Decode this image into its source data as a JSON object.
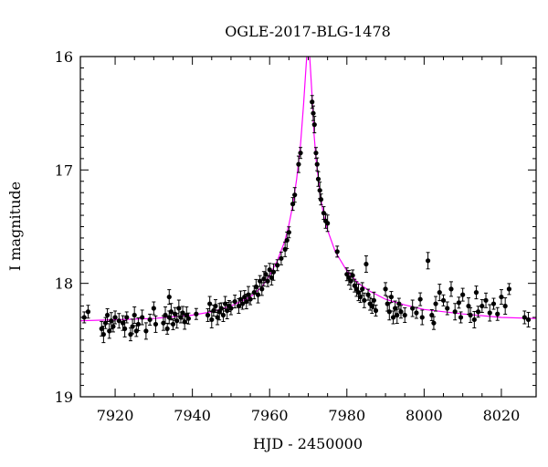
{
  "chart_data": {
    "type": "scatter",
    "title": "OGLE-2017-BLG-1478",
    "xlabel": "HJD - 2450000",
    "ylabel": "I magnitude",
    "xlim": [
      7911,
      8029
    ],
    "ylim": [
      19,
      16
    ],
    "y_axis_inverted": true,
    "x_ticks": [
      7920,
      7940,
      7960,
      7980,
      8000,
      8020
    ],
    "y_ticks": [
      16,
      17,
      18,
      19
    ],
    "grid": false,
    "legend": "none",
    "colors": {
      "points": "#000000",
      "model": "#ff00ff"
    },
    "series": [
      {
        "kind": "observations",
        "points": [
          [
            7912.0,
            18.3
          ],
          [
            7913.0,
            18.25
          ],
          [
            7916.5,
            18.4
          ],
          [
            7917.0,
            18.45
          ],
          [
            7917.5,
            18.35
          ],
          [
            7918.0,
            18.28
          ],
          [
            7918.5,
            18.42
          ],
          [
            7919.0,
            18.33
          ],
          [
            7919.5,
            18.38
          ],
          [
            7920.0,
            18.3
          ],
          [
            7922.0,
            18.35
          ],
          [
            7922.5,
            18.4
          ],
          [
            7923.0,
            18.3
          ],
          [
            7924.0,
            18.45
          ],
          [
            7924.5,
            18.38
          ],
          [
            7925.0,
            18.28
          ],
          [
            7925.5,
            18.42
          ],
          [
            7926.0,
            18.36
          ],
          [
            7927.0,
            18.3
          ],
          [
            7928.0,
            18.42
          ],
          [
            7929.0,
            18.32
          ],
          [
            7930.0,
            18.22
          ],
          [
            7932.5,
            18.35
          ],
          [
            7933.0,
            18.28
          ],
          [
            7933.5,
            18.4
          ],
          [
            7934.0,
            18.3
          ],
          [
            7934.0,
            18.12
          ],
          [
            7934.5,
            18.25
          ],
          [
            7935.0,
            18.36
          ],
          [
            7935.5,
            18.27
          ],
          [
            7936.0,
            18.33
          ],
          [
            7936.5,
            18.22
          ],
          [
            7937.0,
            18.3
          ],
          [
            7937.5,
            18.26
          ],
          [
            7938.0,
            18.34
          ],
          [
            7938.5,
            18.28
          ],
          [
            7939.0,
            18.31
          ],
          [
            7944.0,
            18.28
          ],
          [
            7944.5,
            18.18
          ],
          [
            7945.0,
            18.32
          ],
          [
            7945.5,
            18.24
          ],
          [
            7946.0,
            18.2
          ],
          [
            7946.5,
            18.3
          ],
          [
            7947.0,
            18.25
          ],
          [
            7947.5,
            18.22
          ],
          [
            7948.0,
            18.28
          ],
          [
            7948.5,
            18.18
          ],
          [
            7949.0,
            18.24
          ],
          [
            7949.5,
            18.2
          ],
          [
            7950.0,
            18.22
          ],
          [
            7952.0,
            18.2
          ],
          [
            7952.5,
            18.14
          ],
          [
            7953.0,
            18.18
          ],
          [
            7953.5,
            18.12
          ],
          [
            7954.0,
            18.16
          ],
          [
            7954.5,
            18.1
          ],
          [
            7955.0,
            18.14
          ],
          [
            7956.0,
            18.08
          ],
          [
            7956.5,
            18.03
          ],
          [
            7957.0,
            18.1
          ],
          [
            7957.5,
            17.98
          ],
          [
            7958.0,
            18.05
          ],
          [
            7958.5,
            17.96
          ],
          [
            7959.0,
            17.92
          ],
          [
            7959.5,
            17.98
          ],
          [
            7960.0,
            17.88
          ],
          [
            7960.5,
            17.95
          ],
          [
            7961.0,
            17.9
          ],
          [
            7962.0,
            17.84
          ],
          [
            7963.0,
            17.78
          ],
          [
            7964.0,
            17.7
          ],
          [
            7964.5,
            17.62
          ],
          [
            7965.0,
            17.55
          ],
          [
            7966.0,
            17.3
          ],
          [
            7966.5,
            17.22
          ],
          [
            7967.5,
            16.95
          ],
          [
            7968.0,
            16.85
          ],
          [
            7971.0,
            16.4
          ],
          [
            7971.3,
            16.5
          ],
          [
            7971.6,
            16.6
          ],
          [
            7972.0,
            16.85
          ],
          [
            7972.3,
            16.95
          ],
          [
            7972.6,
            17.08
          ],
          [
            7973.0,
            17.18
          ],
          [
            7973.3,
            17.26
          ],
          [
            7974.0,
            17.38
          ],
          [
            7974.5,
            17.45
          ],
          [
            7975.0,
            17.47
          ],
          [
            7977.5,
            17.72
          ],
          [
            7980.0,
            17.92
          ],
          [
            7980.5,
            17.95
          ],
          [
            7981.0,
            17.98
          ],
          [
            7981.5,
            17.93
          ],
          [
            7982.0,
            18.02
          ],
          [
            7982.5,
            18.05
          ],
          [
            7983.0,
            18.08
          ],
          [
            7983.5,
            18.12
          ],
          [
            7984.0,
            18.05
          ],
          [
            7984.5,
            18.15
          ],
          [
            7985.0,
            17.83
          ],
          [
            7985.5,
            18.1
          ],
          [
            7986.0,
            18.18
          ],
          [
            7986.5,
            18.2
          ],
          [
            7987.0,
            18.15
          ],
          [
            7987.5,
            18.24
          ],
          [
            7990.0,
            18.05
          ],
          [
            7990.5,
            18.18
          ],
          [
            7991.0,
            18.25
          ],
          [
            7991.5,
            18.12
          ],
          [
            7992.0,
            18.3
          ],
          [
            7992.5,
            18.22
          ],
          [
            7993.0,
            18.28
          ],
          [
            7993.5,
            18.18
          ],
          [
            7994.0,
            18.25
          ],
          [
            7995.0,
            18.28
          ],
          [
            7997.0,
            18.22
          ],
          [
            7998.0,
            18.26
          ],
          [
            7999.0,
            18.14
          ],
          [
            7999.5,
            18.3
          ],
          [
            8001.0,
            17.8
          ],
          [
            8002.0,
            18.28
          ],
          [
            8002.5,
            18.35
          ],
          [
            8003.0,
            18.18
          ],
          [
            8004.0,
            18.08
          ],
          [
            8005.0,
            18.15
          ],
          [
            8006.0,
            18.22
          ],
          [
            8007.0,
            18.05
          ],
          [
            8008.0,
            18.25
          ],
          [
            8009.0,
            18.17
          ],
          [
            8010.0,
            18.1
          ],
          [
            8012.0,
            18.28
          ],
          [
            8013.0,
            18.32
          ],
          [
            8014.0,
            18.25
          ],
          [
            8015.0,
            18.2
          ],
          [
            8016.0,
            18.15
          ],
          [
            8017.0,
            18.26
          ],
          [
            8018.0,
            18.18
          ],
          [
            8019.0,
            18.27
          ],
          [
            8020.0,
            18.12
          ],
          [
            8021.0,
            18.2
          ],
          [
            8022.0,
            18.05
          ],
          [
            8026.0,
            18.3
          ],
          [
            8027.0,
            18.32
          ],
          [
            8011.5,
            18.2
          ],
          [
            8009.5,
            18.3
          ],
          [
            8013.5,
            18.08
          ],
          [
            7921.0,
            18.33
          ],
          [
            7930.5,
            18.36
          ],
          [
            7941.0,
            18.27
          ],
          [
            7951.0,
            18.16
          ]
        ]
      },
      {
        "kind": "model",
        "curve": [
          [
            7911,
            18.33
          ],
          [
            7920,
            18.32
          ],
          [
            7930,
            18.31
          ],
          [
            7940,
            18.28
          ],
          [
            7945,
            18.25
          ],
          [
            7950,
            18.2
          ],
          [
            7955,
            18.12
          ],
          [
            7958,
            18.03
          ],
          [
            7960,
            17.93
          ],
          [
            7962,
            17.8
          ],
          [
            7964,
            17.62
          ],
          [
            7965,
            17.48
          ],
          [
            7966,
            17.31
          ],
          [
            7967,
            17.08
          ],
          [
            7968,
            16.78
          ],
          [
            7968.8,
            16.42
          ],
          [
            7969.4,
            16.1
          ],
          [
            7969.8,
            15.9
          ],
          [
            7970.2,
            15.9
          ],
          [
            7970.6,
            16.12
          ],
          [
            7971.0,
            16.35
          ],
          [
            7971.5,
            16.68
          ],
          [
            7972,
            16.9
          ],
          [
            7973,
            17.2
          ],
          [
            7974,
            17.4
          ],
          [
            7975,
            17.53
          ],
          [
            7977,
            17.72
          ],
          [
            7980,
            17.89
          ],
          [
            7983,
            18.0
          ],
          [
            7986,
            18.07
          ],
          [
            7990,
            18.14
          ],
          [
            7995,
            18.19
          ],
          [
            8000,
            18.23
          ],
          [
            8010,
            18.27
          ],
          [
            8020,
            18.3
          ],
          [
            8029,
            18.31
          ]
        ]
      }
    ]
  }
}
